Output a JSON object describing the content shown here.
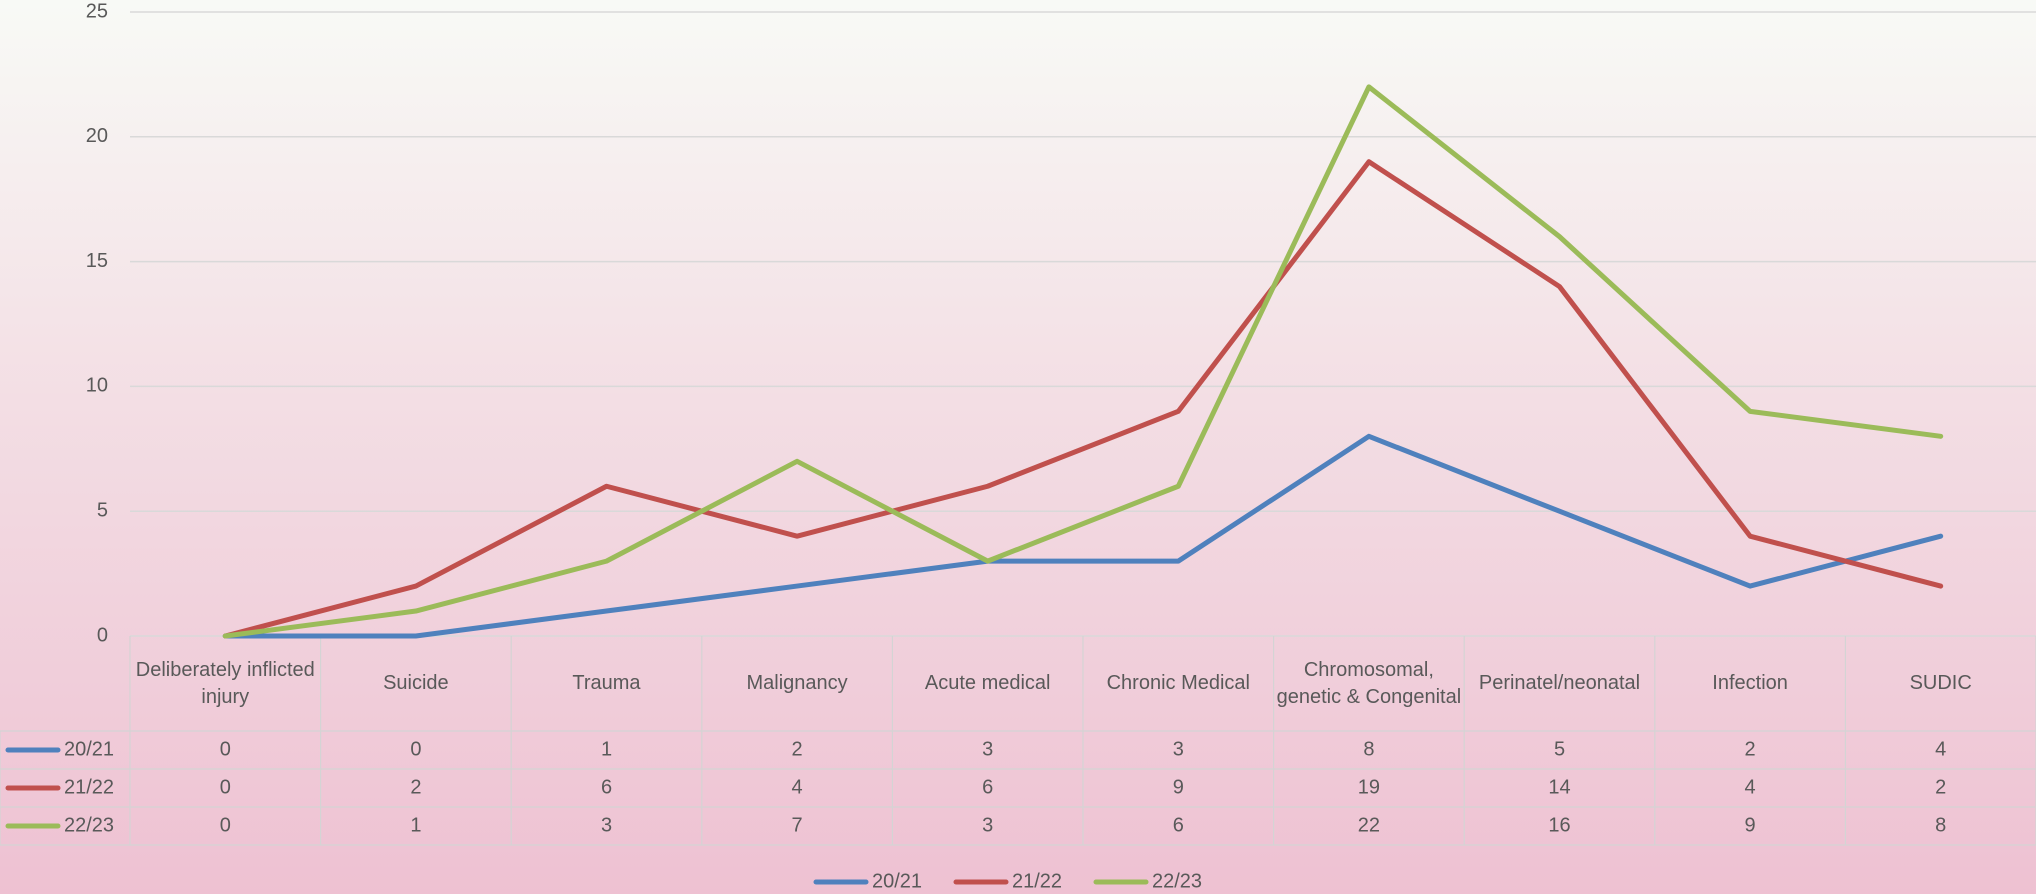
{
  "chart_data": {
    "type": "line",
    "categories": [
      "Deliberately inflicted injury",
      "Suicide",
      "Trauma",
      "Malignancy",
      "Acute medical",
      "Chronic Medical",
      "Chromosomal, genetic & Congenital",
      "Perinatel/neonatal",
      "Infection",
      "SUDIC"
    ],
    "series": [
      {
        "name": "20/21",
        "color": "#4f81bd",
        "values": [
          0,
          0,
          1,
          2,
          3,
          3,
          8,
          5,
          2,
          4
        ]
      },
      {
        "name": "21/22",
        "color": "#c0504d",
        "values": [
          0,
          2,
          6,
          4,
          6,
          9,
          19,
          14,
          4,
          2
        ]
      },
      {
        "name": "22/23",
        "color": "#9bbb59",
        "values": [
          0,
          1,
          3,
          7,
          3,
          6,
          22,
          16,
          9,
          8
        ]
      }
    ],
    "ylim": [
      0,
      25
    ],
    "yticks": [
      0,
      5,
      10,
      15,
      20,
      25
    ],
    "grid": true,
    "legend": "bottom"
  }
}
